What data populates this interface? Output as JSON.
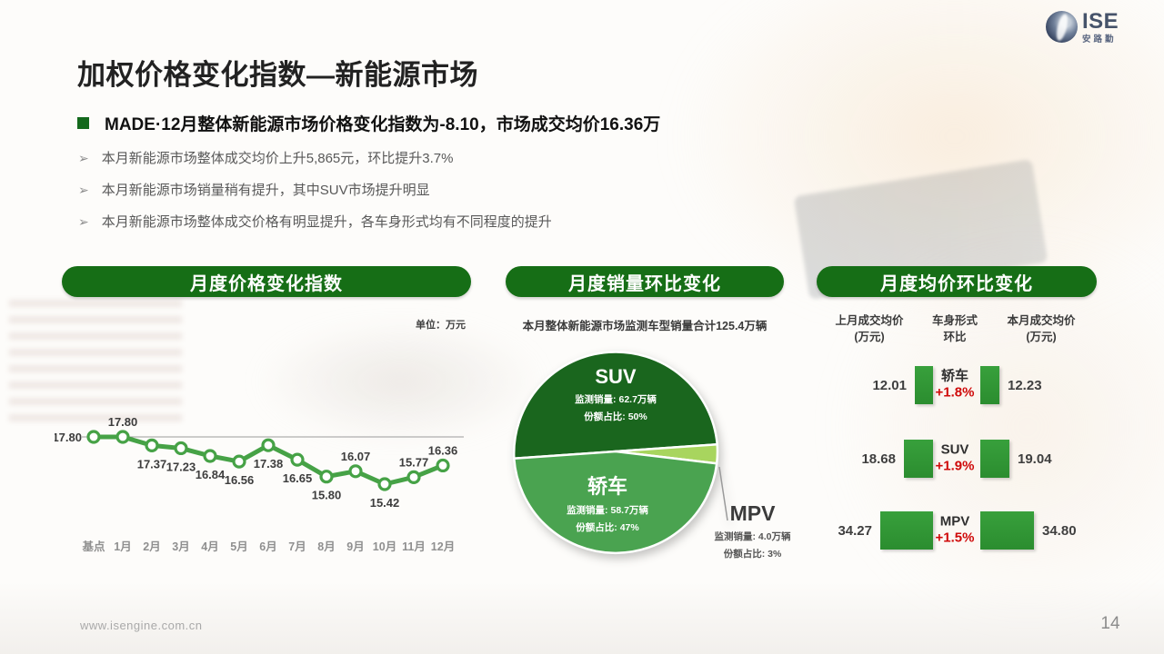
{
  "logo": {
    "name": "ISE",
    "cn_name": "安路勤"
  },
  "header": {
    "title": "加权价格变化指数—新能源市场",
    "key_point": "MADE·12月整体新能源市场价格变化指数为-8.10，市场成交均价16.36万",
    "bullet_marker": "➢",
    "bullets": [
      "本月新能源市场整体成交均价上升5,865元，环比提升3.7%",
      "本月新能源市场销量稍有提升，其中SUV市场提升明显",
      "本月新能源市场整体成交价格有明显提升，各车身形式均有不同程度的提升"
    ]
  },
  "sections": {
    "price_index_title": "月度价格变化指数",
    "unit_label": "单位：万元",
    "sales_title": "月度销量环比变化",
    "sales_subtitle": "本月整体新能源市场监测车型销量合计125.4万辆",
    "avg_price_title": "月度均价环比变化"
  },
  "chart_data": [
    {
      "type": "line",
      "title": "月度价格变化指数",
      "ylabel": "单位：万元",
      "categories": [
        "基点",
        "1月",
        "2月",
        "3月",
        "4月",
        "5月",
        "6月",
        "7月",
        "8月",
        "9月",
        "10月",
        "11月",
        "12月"
      ],
      "values": [
        17.8,
        17.8,
        17.37,
        17.23,
        16.84,
        16.56,
        17.38,
        16.65,
        15.8,
        16.07,
        15.42,
        15.77,
        16.36
      ],
      "label_pos": [
        "left",
        "above",
        "below",
        "below",
        "below",
        "below",
        "below",
        "below",
        "below",
        "above",
        "below",
        "above",
        "above"
      ],
      "baseline_value": 17.8,
      "grid": "single-baseline",
      "ylim": [
        15.2,
        18.0
      ]
    },
    {
      "type": "pie",
      "title": "月度销量环比变化",
      "subtitle": "本月整体新能源市场监测车型销量合计125.4万辆",
      "start_angle": 266,
      "slices": [
        {
          "label": "SUV",
          "pct": 50,
          "sales": "监测销量: 62.7万辆",
          "share": "份额占比: 50%",
          "color": "#1a661e"
        },
        {
          "label": "MPV",
          "pct": 3,
          "sales": "监测销量: 4.0万辆",
          "share": "份额占比: 3%",
          "color": "#a8d55e"
        },
        {
          "label": "轿车",
          "pct": 47,
          "sales": "监测销量: 58.7万辆",
          "share": "份额占比: 47%",
          "color": "#4aa350"
        }
      ]
    },
    {
      "type": "table",
      "title": "月度均价环比变化",
      "col_headers": [
        [
          "上月成交均价",
          "(万元)"
        ],
        [
          "车身形式",
          "环比"
        ],
        [
          "本月成交均价",
          "(万元)"
        ]
      ],
      "rows": [
        {
          "name": "轿车",
          "prev": "12.01",
          "prev_val": 12.01,
          "pct": "+1.8%",
          "cur": "12.23",
          "cur_val": 12.23
        },
        {
          "name": "SUV",
          "prev": "18.68",
          "prev_val": 18.68,
          "pct": "+1.9%",
          "cur": "19.04",
          "cur_val": 19.04
        },
        {
          "name": "MPV",
          "prev": "34.27",
          "prev_val": 34.27,
          "pct": "+1.5%",
          "cur": "34.80",
          "cur_val": 34.8
        }
      ]
    }
  ],
  "colors": {
    "accent_green": "#166e16",
    "line_green": "#46a246",
    "bar_green": "#2f9733",
    "pie_suv": "#1a661e",
    "pie_sedan": "#4aa350",
    "pie_mpv": "#a8d55e",
    "pct_red": "#cf0a0a",
    "baseline_gray": "#9b9b9b",
    "value_label": "#3d3d3d",
    "axis_label": "#8f8f8f"
  },
  "footer": {
    "url": "www.isengine.com.cn",
    "page": "14"
  }
}
